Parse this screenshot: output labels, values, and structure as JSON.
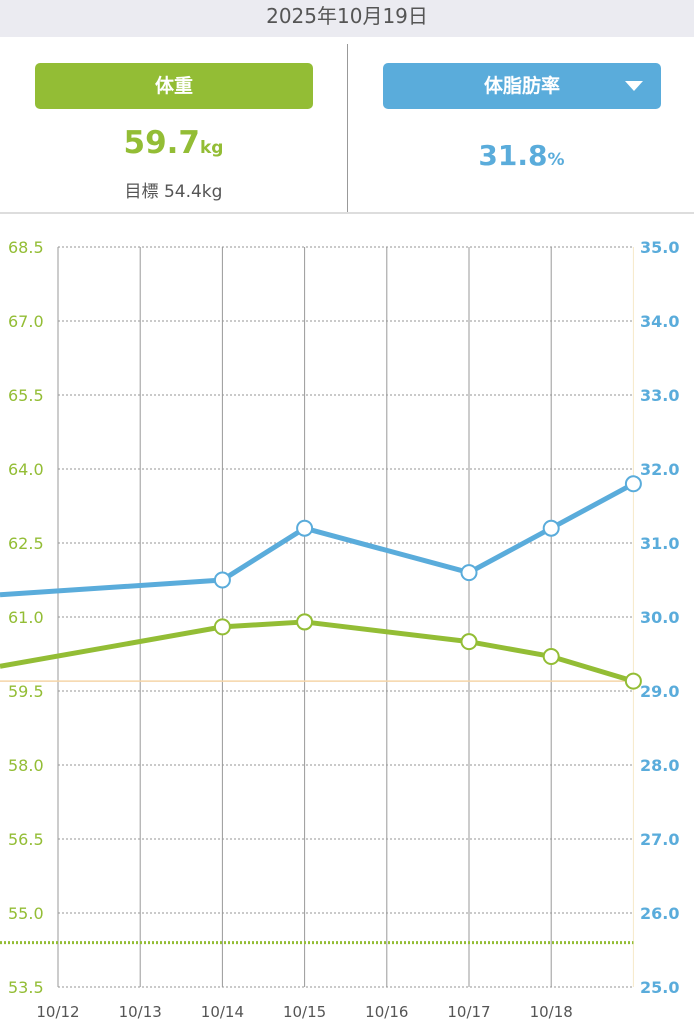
{
  "header": {
    "date": "2025年10月19日"
  },
  "weight_panel": {
    "label": "体重",
    "value": "59.7",
    "unit": "kg",
    "goal_label": "目標 54.4kg"
  },
  "fat_panel": {
    "label": "体脂肪率",
    "value": "31.8",
    "unit": "%",
    "dropdown_icon": "triangle-down-icon"
  },
  "colors": {
    "weight": "#93bd35",
    "fat": "#5aacdb",
    "current_line": "#f5d5a8"
  },
  "chart_data": {
    "type": "line",
    "categories": [
      "10/12",
      "10/13",
      "10/14",
      "10/15",
      "10/16",
      "10/17",
      "10/18",
      "10/19"
    ],
    "x_tick_labels": [
      "10/12",
      "10/13",
      "10/14",
      "10/15",
      "10/16",
      "10/17",
      "10/18"
    ],
    "left_axis": {
      "ylim": [
        53.5,
        68.5
      ],
      "ticks": [
        "68.5",
        "67.0",
        "65.5",
        "64.0",
        "62.5",
        "61.0",
        "59.5",
        "58.0",
        "56.5",
        "55.0",
        "53.5"
      ]
    },
    "right_axis": {
      "ylim": [
        25.0,
        35.0
      ],
      "ticks": [
        "35.0",
        "34.0",
        "33.0",
        "32.0",
        "31.0",
        "30.0",
        "29.0",
        "28.0",
        "27.0",
        "26.0",
        "25.0"
      ]
    },
    "series": [
      {
        "key": "weight",
        "axis": "left",
        "values": [
          60.0,
          null,
          60.8,
          60.9,
          null,
          60.5,
          60.2,
          59.7
        ],
        "marked": [
          false,
          false,
          true,
          true,
          false,
          true,
          true,
          true
        ]
      },
      {
        "key": "fat",
        "axis": "right",
        "values": [
          30.3,
          null,
          30.5,
          31.2,
          null,
          30.6,
          31.2,
          31.8
        ],
        "marked": [
          false,
          false,
          true,
          true,
          false,
          true,
          true,
          true
        ]
      }
    ],
    "goal_weight": 54.4,
    "current_weight_line": 59.7,
    "grid": true
  }
}
